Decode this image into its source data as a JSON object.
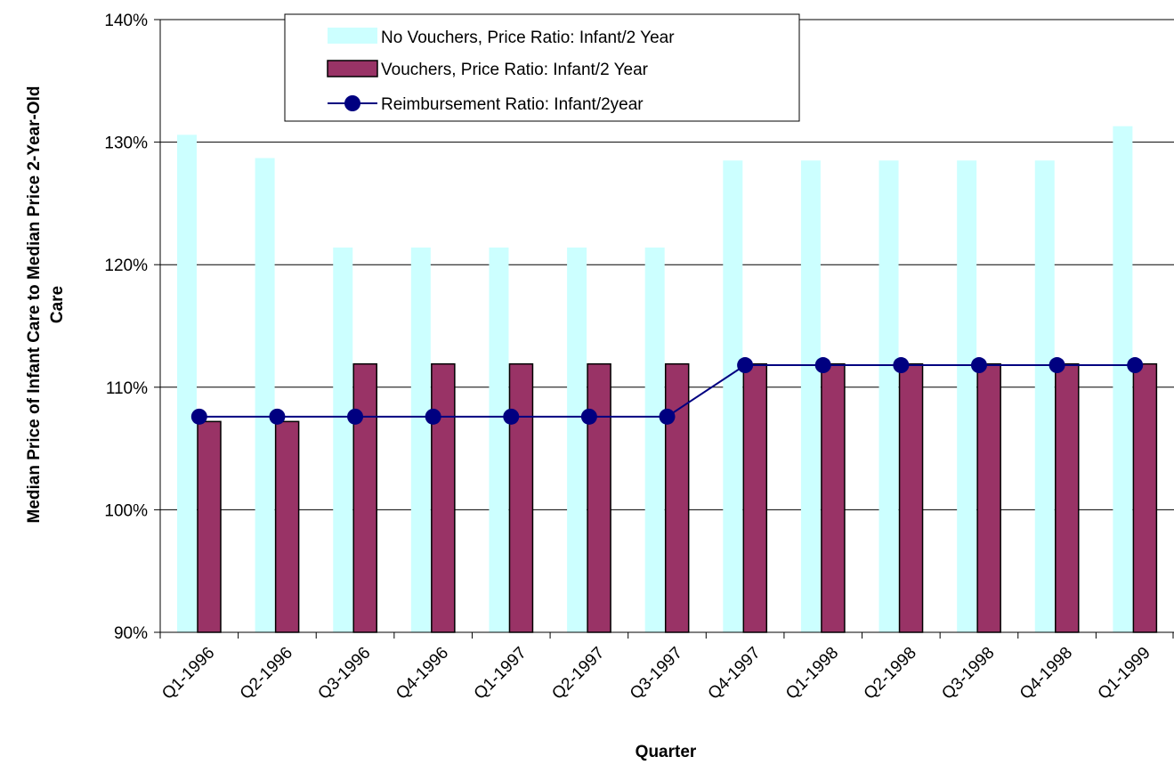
{
  "chart_data": {
    "type": "bar",
    "xlabel": "Quarter",
    "ylabel_lines": [
      "Median Price of Infant Care to Median Price 2-Year-Old",
      "Care"
    ],
    "ylim": [
      0.9,
      1.4
    ],
    "yticks": [
      0.9,
      1.0,
      1.1,
      1.2,
      1.3,
      1.4
    ],
    "ytick_labels": [
      "90%",
      "100%",
      "110%",
      "120%",
      "130%",
      "140%"
    ],
    "grid": "horizontal",
    "legend_position": "top-center",
    "categories": [
      "Q1-1996",
      "Q2-1996",
      "Q3-1996",
      "Q4-1996",
      "Q1-1997",
      "Q2-1997",
      "Q3-1997",
      "Q4-1997",
      "Q1-1998",
      "Q2-1998",
      "Q3-1998",
      "Q4-1998",
      "Q1-1999"
    ],
    "series": [
      {
        "name": "No Vouchers, Price Ratio: Infant/2 Year",
        "kind": "bar",
        "color": "#ccffff",
        "values": [
          1.306,
          1.287,
          1.214,
          1.214,
          1.214,
          1.214,
          1.214,
          1.285,
          1.285,
          1.285,
          1.285,
          1.285,
          1.313
        ]
      },
      {
        "name": "Vouchers, Price Ratio: Infant/2 Year",
        "kind": "bar",
        "color": "#993366",
        "values": [
          1.072,
          1.072,
          1.119,
          1.119,
          1.119,
          1.119,
          1.119,
          1.119,
          1.119,
          1.119,
          1.119,
          1.119,
          1.119
        ]
      },
      {
        "name": "Reimbursement Ratio: Infant/2year",
        "kind": "line",
        "color": "#000080",
        "values": [
          1.076,
          1.076,
          1.076,
          1.076,
          1.076,
          1.076,
          1.076,
          1.118,
          1.118,
          1.118,
          1.118,
          1.118,
          1.118
        ]
      }
    ]
  }
}
